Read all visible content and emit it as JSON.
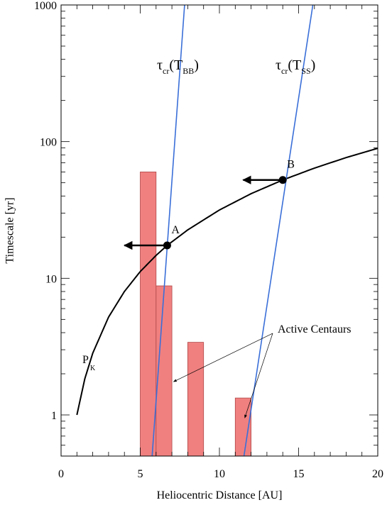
{
  "chart_data": {
    "type": "bar",
    "xlabel": "Heliocentric Distance [AU]",
    "ylabel": "Timescale [yr]",
    "xlim": [
      0,
      20
    ],
    "ylim": [
      0.5,
      1000
    ],
    "yscale": "log",
    "grid": false,
    "xticks": [
      {
        "value": 0,
        "label": "0"
      },
      {
        "value": 5,
        "label": "5"
      },
      {
        "value": 10,
        "label": "10"
      },
      {
        "value": 15,
        "label": "15"
      },
      {
        "value": 20,
        "label": "20"
      }
    ],
    "yticks": [
      {
        "value": 1,
        "label": "1"
      },
      {
        "value": 10,
        "label": "10"
      },
      {
        "value": 100,
        "label": "100"
      },
      {
        "value": 1000,
        "label": "1000"
      }
    ],
    "bars": [
      {
        "x0": 5.0,
        "x1": 6.0,
        "value": 60
      },
      {
        "x0": 6.0,
        "x1": 7.0,
        "value": 8.8
      },
      {
        "x0": 8.0,
        "x1": 9.0,
        "value": 3.4
      },
      {
        "x0": 11.0,
        "x1": 12.0,
        "value": 1.33
      }
    ],
    "bar_color": "#f08080",
    "curves": [
      {
        "label_main": "P",
        "label_sub": "K",
        "color": "#000000",
        "points": [
          [
            1.0,
            1.0
          ],
          [
            1.5,
            1.84
          ],
          [
            2.0,
            2.83
          ],
          [
            3.0,
            5.2
          ],
          [
            4.0,
            8.0
          ],
          [
            5.0,
            11.2
          ],
          [
            6.0,
            14.7
          ],
          [
            6.7,
            17.4
          ],
          [
            8.0,
            22.6
          ],
          [
            10.0,
            31.6
          ],
          [
            12.0,
            41.6
          ],
          [
            14.0,
            52.4
          ],
          [
            16.0,
            64.0
          ],
          [
            18.0,
            76.4
          ],
          [
            20.0,
            89.4
          ]
        ]
      },
      {
        "label_main": "τ",
        "label_sub1": "cr",
        "label_paren_open": "(T",
        "label_sub2": "BB",
        "label_paren_close": ")",
        "color": "#3a6fd8",
        "points": [
          [
            5.75,
            0.5
          ],
          [
            7.8,
            1000
          ]
        ]
      },
      {
        "label_main": "τ",
        "label_sub1": "cr",
        "label_paren_open": "(T",
        "label_sub2": "SS",
        "label_paren_close": ")",
        "color": "#3a6fd8",
        "points": [
          [
            11.55,
            0.5
          ],
          [
            15.9,
            1000
          ]
        ]
      }
    ],
    "markers": [
      {
        "label": "A",
        "x": 6.7,
        "y": 17.4,
        "arrow_to_x": 4.0
      },
      {
        "label": "B",
        "x": 14.0,
        "y": 52.4,
        "arrow_to_x": 11.5
      }
    ],
    "annotation": {
      "text": "Active Centaurs",
      "targets": [
        {
          "x": 7.1,
          "y": 1.75
        },
        {
          "x": 11.6,
          "y": 0.95
        }
      ]
    }
  }
}
